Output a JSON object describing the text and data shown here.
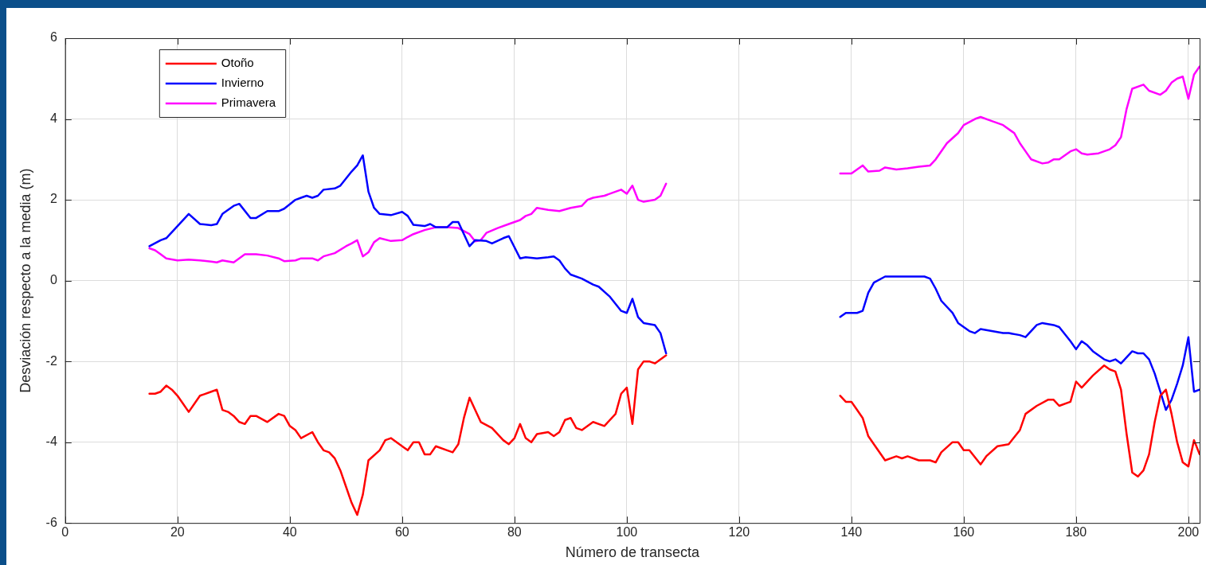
{
  "chart_data": {
    "type": "line",
    "xlabel": "Número de transecta",
    "ylabel": "Desviación respecto a la media (m)",
    "xlim": [
      0,
      202
    ],
    "xticks": [
      0,
      20,
      40,
      60,
      80,
      100,
      120,
      140,
      160,
      180,
      200
    ],
    "ylim": [
      -6,
      6
    ],
    "yticks": [
      -6,
      -4,
      -2,
      0,
      2,
      4,
      6
    ],
    "grid": true,
    "legend": "top left",
    "line_style": "solid",
    "marker": "none",
    "series": [
      {
        "name": "Otoño",
        "color": "#ff0000",
        "x": [
          15,
          16,
          17,
          18,
          19,
          20,
          22,
          24,
          26,
          27,
          28,
          29,
          30,
          31,
          32,
          33,
          34,
          36,
          38,
          39,
          40,
          41,
          42,
          44,
          45,
          46,
          47,
          48,
          49,
          50,
          51,
          52,
          53,
          54,
          56,
          57,
          58,
          60,
          61,
          62,
          63,
          64,
          65,
          66,
          68,
          69,
          70,
          71,
          72,
          74,
          76,
          78,
          79,
          80,
          81,
          82,
          83,
          84,
          86,
          87,
          88,
          89,
          90,
          91,
          92,
          94,
          96,
          98,
          99,
          100,
          101,
          102,
          103,
          104,
          105,
          107,
          120,
          138,
          139,
          140,
          141,
          142,
          143,
          144,
          146,
          148,
          149,
          150,
          152,
          154,
          155,
          156,
          158,
          159,
          160,
          161,
          163,
          164,
          166,
          168,
          170,
          171,
          173,
          175,
          176,
          177,
          179,
          180,
          181,
          183,
          185,
          186,
          187,
          188,
          189,
          190,
          191,
          192,
          193,
          194,
          195,
          196,
          197,
          198,
          199,
          200,
          201,
          202
        ],
        "values": [
          -2.8,
          -2.8,
          -2.75,
          -2.6,
          -2.7,
          -2.85,
          -3.25,
          -2.85,
          -2.75,
          -2.7,
          -3.2,
          -3.25,
          -3.35,
          -3.5,
          -3.55,
          -3.35,
          -3.35,
          -3.5,
          -3.3,
          -3.35,
          -3.6,
          -3.7,
          -3.9,
          -3.75,
          -4.0,
          -4.2,
          -4.25,
          -4.4,
          -4.7,
          -5.1,
          -5.5,
          -5.8,
          -5.3,
          -4.45,
          -4.2,
          -3.95,
          -3.9,
          -4.1,
          -4.2,
          -4.0,
          -4.0,
          -4.3,
          -4.3,
          -4.1,
          -4.2,
          -4.25,
          -4.05,
          -3.4,
          -2.9,
          -3.5,
          -3.65,
          -3.95,
          -4.05,
          -3.9,
          -3.55,
          -3.9,
          -4.0,
          -3.8,
          -3.75,
          -3.85,
          -3.75,
          -3.45,
          -3.4,
          -3.65,
          -3.7,
          -3.5,
          -3.6,
          -3.3,
          -2.8,
          -2.65,
          -3.55,
          -2.2,
          -2.0,
          -2.0,
          -2.05,
          -1.85,
          null,
          -2.85,
          -3.0,
          -3.0,
          -3.2,
          -3.4,
          -3.85,
          -4.05,
          -4.45,
          -4.35,
          -4.4,
          -4.35,
          -4.45,
          -4.45,
          -4.5,
          -4.25,
          -4.0,
          -4.0,
          -4.2,
          -4.2,
          -4.55,
          -4.35,
          -4.1,
          -4.05,
          -3.7,
          -3.3,
          -3.1,
          -2.95,
          -2.95,
          -3.1,
          -3.0,
          -2.5,
          -2.65,
          -2.35,
          -2.1,
          -2.2,
          -2.25,
          -2.7,
          -3.8,
          -4.75,
          -4.85,
          -4.7,
          -4.3,
          -3.5,
          -2.85,
          -2.7,
          -3.3,
          -4.0,
          -4.5,
          -4.6,
          -3.95,
          -4.3
        ]
      },
      {
        "name": "Invierno",
        "color": "#0000ff",
        "x": [
          15,
          17,
          18,
          20,
          22,
          24,
          26,
          27,
          28,
          30,
          31,
          33,
          34,
          36,
          38,
          39,
          41,
          42,
          43,
          44,
          45,
          46,
          48,
          49,
          51,
          52,
          53,
          54,
          55,
          56,
          58,
          60,
          61,
          62,
          64,
          65,
          66,
          68,
          69,
          70,
          72,
          73,
          75,
          76,
          78,
          79,
          81,
          82,
          84,
          86,
          87,
          88,
          89,
          90,
          92,
          94,
          95,
          97,
          99,
          100,
          101,
          102,
          103,
          105,
          106,
          107,
          120,
          138,
          139,
          141,
          142,
          143,
          144,
          146,
          148,
          150,
          152,
          153,
          154,
          155,
          156,
          158,
          159,
          160,
          161,
          162,
          163,
          165,
          167,
          168,
          170,
          171,
          173,
          174,
          176,
          177,
          179,
          180,
          181,
          182,
          183,
          185,
          186,
          187,
          188,
          190,
          191,
          192,
          193,
          194,
          195,
          196,
          197,
          198,
          199,
          200,
          201,
          202
        ],
        "values": [
          0.85,
          1.0,
          1.05,
          1.35,
          1.65,
          1.4,
          1.37,
          1.4,
          1.65,
          1.85,
          1.9,
          1.55,
          1.55,
          1.72,
          1.72,
          1.78,
          2.0,
          2.05,
          2.1,
          2.05,
          2.1,
          2.25,
          2.28,
          2.35,
          2.7,
          2.85,
          3.1,
          2.2,
          1.8,
          1.65,
          1.62,
          1.7,
          1.6,
          1.38,
          1.35,
          1.4,
          1.32,
          1.32,
          1.45,
          1.45,
          0.85,
          1.0,
          0.98,
          0.92,
          1.05,
          1.1,
          0.55,
          0.58,
          0.55,
          0.58,
          0.6,
          0.5,
          0.3,
          0.15,
          0.05,
          -0.1,
          -0.15,
          -0.4,
          -0.75,
          -0.8,
          -0.45,
          -0.9,
          -1.05,
          -1.1,
          -1.3,
          -1.8,
          null,
          -0.9,
          -0.8,
          -0.8,
          -0.75,
          -0.3,
          -0.05,
          0.1,
          0.1,
          0.1,
          0.1,
          0.1,
          0.05,
          -0.2,
          -0.5,
          -0.8,
          -1.05,
          -1.15,
          -1.25,
          -1.3,
          -1.2,
          -1.25,
          -1.3,
          -1.3,
          -1.35,
          -1.4,
          -1.1,
          -1.05,
          -1.1,
          -1.15,
          -1.5,
          -1.7,
          -1.5,
          -1.6,
          -1.75,
          -1.95,
          -2.0,
          -1.95,
          -2.05,
          -1.75,
          -1.8,
          -1.8,
          -1.95,
          -2.3,
          -2.75,
          -3.2,
          -2.95,
          -2.55,
          -2.1,
          -1.4,
          -2.75,
          -2.7
        ]
      },
      {
        "name": "Primavera",
        "color": "#ff00ff",
        "x": [
          15,
          16,
          17,
          18,
          20,
          22,
          24,
          26,
          27,
          28,
          30,
          32,
          34,
          36,
          38,
          39,
          41,
          42,
          44,
          45,
          46,
          48,
          50,
          51,
          52,
          53,
          54,
          55,
          56,
          58,
          60,
          61,
          62,
          64,
          66,
          68,
          70,
          72,
          73,
          74,
          75,
          77,
          79,
          80,
          81,
          82,
          83,
          84,
          86,
          88,
          90,
          92,
          93,
          94,
          96,
          98,
          99,
          100,
          101,
          102,
          103,
          105,
          106,
          107,
          120,
          138,
          140,
          142,
          143,
          145,
          146,
          148,
          150,
          152,
          154,
          155,
          157,
          159,
          160,
          162,
          163,
          165,
          167,
          169,
          170,
          171,
          172,
          174,
          175,
          176,
          177,
          179,
          180,
          181,
          182,
          184,
          186,
          187,
          188,
          189,
          190,
          192,
          193,
          195,
          196,
          197,
          198,
          199,
          200,
          201,
          202
        ],
        "values": [
          0.8,
          0.75,
          0.65,
          0.55,
          0.5,
          0.52,
          0.5,
          0.47,
          0.45,
          0.5,
          0.45,
          0.65,
          0.65,
          0.62,
          0.55,
          0.48,
          0.5,
          0.55,
          0.55,
          0.5,
          0.6,
          0.68,
          0.85,
          0.92,
          1.0,
          0.6,
          0.7,
          0.95,
          1.05,
          0.98,
          1.0,
          1.08,
          1.15,
          1.25,
          1.32,
          1.32,
          1.3,
          1.15,
          0.97,
          1.0,
          1.18,
          1.3,
          1.4,
          1.45,
          1.5,
          1.6,
          1.65,
          1.8,
          1.75,
          1.72,
          1.8,
          1.85,
          2.0,
          2.05,
          2.1,
          2.2,
          2.25,
          2.15,
          2.35,
          2.0,
          1.95,
          2.0,
          2.1,
          2.4,
          null,
          2.65,
          2.65,
          2.85,
          2.7,
          2.72,
          2.8,
          2.75,
          2.78,
          2.82,
          2.85,
          3.0,
          3.4,
          3.65,
          3.85,
          4.0,
          4.05,
          3.95,
          3.85,
          3.65,
          3.4,
          3.2,
          3.0,
          2.9,
          2.92,
          3.0,
          3.0,
          3.2,
          3.25,
          3.15,
          3.12,
          3.15,
          3.25,
          3.35,
          3.55,
          4.25,
          4.75,
          4.85,
          4.7,
          4.6,
          4.7,
          4.9,
          5.0,
          5.05,
          4.5,
          5.1,
          5.3
        ]
      }
    ]
  }
}
